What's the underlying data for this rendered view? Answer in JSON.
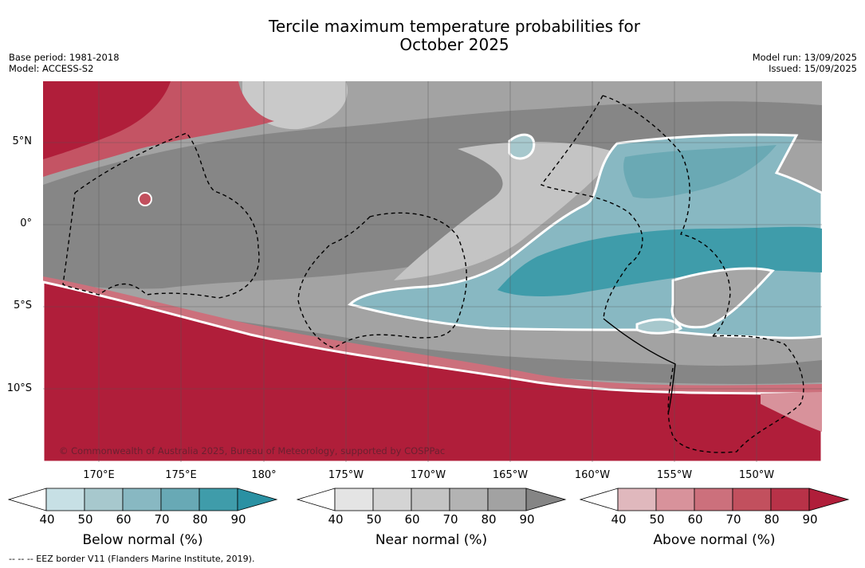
{
  "title_line1": "Tercile maximum temperature probabilities for",
  "title_line2": "October 2025",
  "meta_left": [
    "Base period: 1981-2018",
    "Model: ACCESS-S2"
  ],
  "meta_right": [
    "Model run: 13/09/2025",
    "Issued: 15/09/2025"
  ],
  "lat_labels": [
    "5°N",
    "0°",
    "5°S",
    "10°S"
  ],
  "lon_labels": [
    "170°E",
    "175°E",
    "180°",
    "175°W",
    "170°W",
    "165°W",
    "160°W",
    "155°W",
    "150°W"
  ],
  "copyright": "© Commonwealth of Australia 2025, Bureau of Meteorology, supported by COSPPac",
  "colorbars": [
    {
      "title": "Below normal (%)",
      "ticks": [
        "40",
        "50",
        "60",
        "70",
        "80",
        "90"
      ],
      "colors": [
        "#ffffff",
        "#c7e0e5",
        "#a7c8cd",
        "#88b8c2",
        "#68a9b5",
        "#3f9caa",
        "#2a91a3"
      ]
    },
    {
      "title": "Near normal (%)",
      "ticks": [
        "40",
        "50",
        "60",
        "70",
        "80",
        "90"
      ],
      "colors": [
        "#ffffff",
        "#e4e4e4",
        "#d4d4d4",
        "#c4c4c4",
        "#b3b3b3",
        "#a2a2a2",
        "#858585"
      ]
    },
    {
      "title": "Above normal (%)",
      "ticks": [
        "40",
        "50",
        "60",
        "70",
        "80",
        "90"
      ],
      "colors": [
        "#ffffff",
        "#e0b8bd",
        "#d8929b",
        "#cc707c",
        "#c2505e",
        "#b83248",
        "#b01e3a"
      ]
    }
  ],
  "eez_note": "--  --  -- EEZ border V11 (Flanders Marine Institute, 2019)."
}
